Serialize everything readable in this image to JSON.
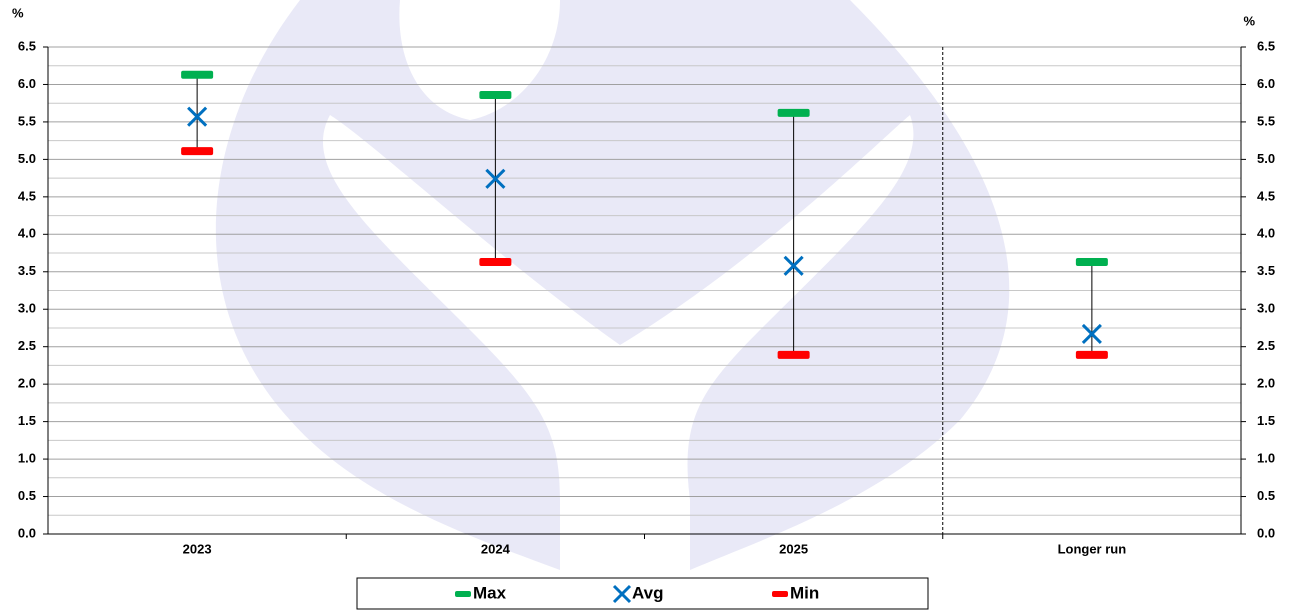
{
  "chart_data": {
    "type": "range",
    "y_label": "%",
    "y2_label": "%",
    "categories": [
      "2023",
      "2024",
      "2025",
      "Longer run"
    ],
    "series": [
      {
        "name": "Max",
        "color": "#00b050",
        "marker": "dash",
        "values": [
          6.13,
          5.86,
          5.62,
          3.63
        ]
      },
      {
        "name": "Avg",
        "color": "#0070c0",
        "marker": "x",
        "values": [
          5.57,
          4.74,
          3.58,
          2.67
        ]
      },
      {
        "name": "Min",
        "color": "#ff0000",
        "marker": "dash",
        "values": [
          5.11,
          3.63,
          2.39,
          2.39
        ]
      }
    ],
    "ylim": [
      0,
      6.5
    ],
    "yticks": [
      {
        "value": 0,
        "label": "0.0"
      },
      0.5,
      {
        "value": 1,
        "label": "1.0"
      },
      1.5,
      {
        "value": 2,
        "label": "2.0"
      },
      2.5,
      {
        "value": 3,
        "label": "3.0"
      },
      3.5,
      {
        "value": 4,
        "label": "4.0"
      },
      4.5,
      {
        "value": 5,
        "label": "5.0"
      },
      5.5,
      {
        "value": 6,
        "label": "6.0"
      },
      6.5
    ],
    "y2lim": [
      0,
      6.5
    ],
    "y2ticks": [
      {
        "value": 0,
        "label": "0.0"
      },
      0.5,
      {
        "value": 1,
        "label": "1.0"
      },
      1.5,
      {
        "value": 2,
        "label": "2.0"
      },
      2.5,
      {
        "value": 3,
        "label": "3.0"
      },
      3.5,
      {
        "value": 4,
        "label": "4.0"
      },
      4.5,
      {
        "value": 5,
        "label": "5.0"
      },
      5.5,
      {
        "value": 6,
        "label": "6.0"
      },
      6.5
    ],
    "minor_yticks": [
      0.25,
      0.75,
      1.25,
      1.75,
      2.25,
      2.75,
      3.25,
      3.75,
      4.25,
      4.75,
      5.25,
      5.75,
      6.25
    ],
    "grid": true,
    "legend": "bottom"
  }
}
